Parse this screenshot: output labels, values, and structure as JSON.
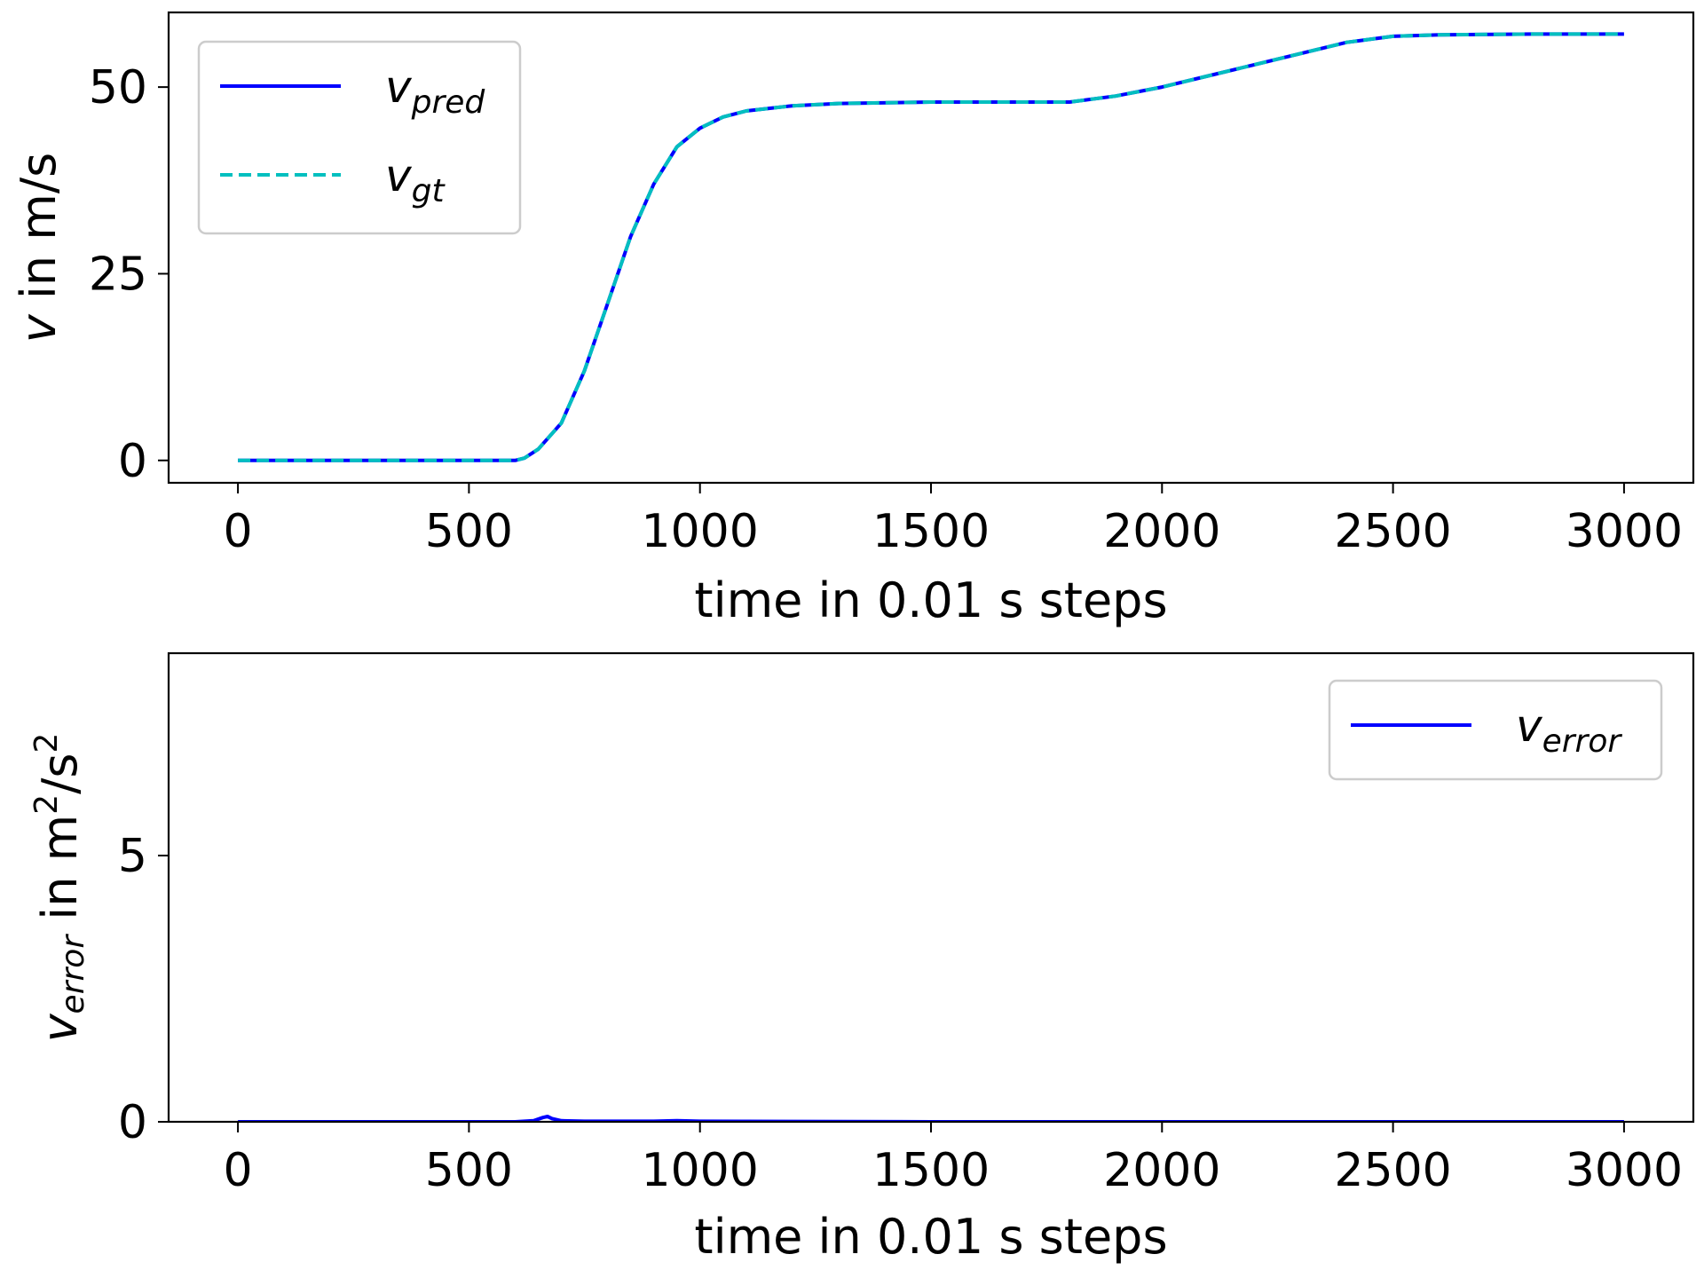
{
  "chart_data": [
    {
      "type": "line",
      "xlabel": "time in 0.01 s steps",
      "ylabel": {
        "var": "v",
        "unit": " in m/s"
      },
      "xlim": [
        -150,
        3150
      ],
      "ylim": [
        -3,
        60
      ],
      "xticks": [
        0,
        500,
        1000,
        1500,
        2000,
        2500,
        3000
      ],
      "yticks": [
        0,
        25,
        50
      ],
      "legend_position": "upper-left",
      "series": [
        {
          "name": {
            "base": "v",
            "sub": "pred"
          },
          "color": "#0000ff",
          "style": "solid",
          "x": [
            0,
            300,
            600,
            620,
            650,
            700,
            750,
            800,
            850,
            900,
            950,
            1000,
            1050,
            1100,
            1200,
            1300,
            1500,
            1700,
            1800,
            1900,
            2000,
            2100,
            2200,
            2300,
            2400,
            2500,
            2600,
            2800,
            3000
          ],
          "y": [
            0,
            0,
            0,
            0.3,
            1.5,
            5,
            12,
            21,
            30,
            37,
            42,
            44.5,
            46,
            46.8,
            47.5,
            47.8,
            48,
            48,
            48,
            48.8,
            50,
            51.5,
            53,
            54.5,
            56,
            56.8,
            57,
            57.1,
            57.1
          ]
        },
        {
          "name": {
            "base": "v",
            "sub": "gt"
          },
          "color": "#00bfbf",
          "style": "dashed",
          "x": [
            0,
            300,
            600,
            620,
            650,
            700,
            750,
            800,
            850,
            900,
            950,
            1000,
            1050,
            1100,
            1200,
            1300,
            1500,
            1700,
            1800,
            1900,
            2000,
            2100,
            2200,
            2300,
            2400,
            2500,
            2600,
            2800,
            3000
          ],
          "y": [
            0,
            0,
            0,
            0.3,
            1.5,
            5,
            12,
            21,
            30,
            37,
            42,
            44.5,
            46,
            46.8,
            47.5,
            47.8,
            48,
            48,
            48,
            48.8,
            50,
            51.5,
            53,
            54.5,
            56,
            56.8,
            57,
            57.1,
            57.1
          ]
        }
      ]
    },
    {
      "type": "line",
      "xlabel": "time in 0.01 s steps",
      "ylabel": {
        "var": "v",
        "sub": "error",
        "unit": " in m",
        "unit_sup": "2",
        "unit_tail": "/s",
        "unit_tail_sup": "2"
      },
      "xlim": [
        -150,
        3150
      ],
      "ylim": [
        0,
        8.8
      ],
      "xticks": [
        0,
        500,
        1000,
        1500,
        2000,
        2500,
        3000
      ],
      "yticks": [
        0,
        5
      ],
      "legend_position": "upper-right",
      "series": [
        {
          "name": {
            "base": "v",
            "sub": "error"
          },
          "color": "#0000ff",
          "style": "solid",
          "x": [
            0,
            600,
            640,
            660,
            670,
            680,
            700,
            750,
            900,
            950,
            1000,
            1500,
            2000,
            2500,
            3000
          ],
          "y": [
            0,
            0,
            0.02,
            0.08,
            0.1,
            0.06,
            0.02,
            0.01,
            0.01,
            0.02,
            0.01,
            0,
            0,
            0,
            0
          ]
        }
      ]
    }
  ]
}
